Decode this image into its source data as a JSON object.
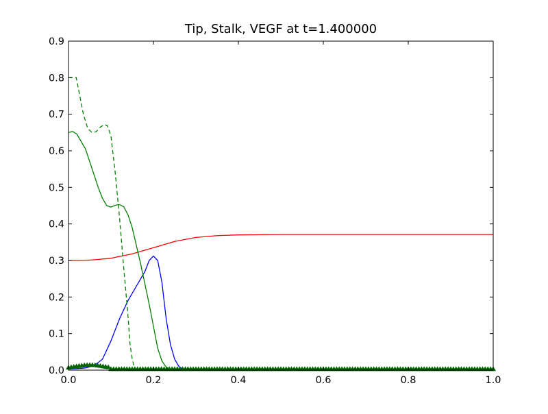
{
  "chart_data": {
    "type": "line",
    "title": "Tip, Stalk, VEGF at t=1.400000",
    "xlabel": "",
    "ylabel": "",
    "xlim": [
      0.0,
      1.0
    ],
    "ylim": [
      0.0,
      0.9
    ],
    "x_ticks": [
      "0.0",
      "0.2",
      "0.4",
      "0.6",
      "0.8",
      "1.0"
    ],
    "y_ticks": [
      "0.0",
      "0.1",
      "0.2",
      "0.3",
      "0.4",
      "0.5",
      "0.6",
      "0.7",
      "0.8",
      "0.9"
    ],
    "grid": false,
    "legend": "none",
    "series": [
      {
        "color": "#ff0000",
        "style": "solid",
        "points": [
          [
            0.0,
            0.3
          ],
          [
            0.05,
            0.301
          ],
          [
            0.1,
            0.306
          ],
          [
            0.15,
            0.318
          ],
          [
            0.2,
            0.335
          ],
          [
            0.25,
            0.352
          ],
          [
            0.3,
            0.363
          ],
          [
            0.35,
            0.368
          ],
          [
            0.4,
            0.37
          ],
          [
            0.5,
            0.371
          ],
          [
            0.6,
            0.371
          ],
          [
            0.7,
            0.371
          ],
          [
            0.8,
            0.371
          ],
          [
            0.9,
            0.371
          ],
          [
            1.0,
            0.371
          ]
        ]
      },
      {
        "color": "#0000ff",
        "style": "solid",
        "points": [
          [
            0.0,
            0.003
          ],
          [
            0.02,
            0.004
          ],
          [
            0.04,
            0.006
          ],
          [
            0.06,
            0.012
          ],
          [
            0.08,
            0.03
          ],
          [
            0.1,
            0.08
          ],
          [
            0.12,
            0.14
          ],
          [
            0.14,
            0.19
          ],
          [
            0.16,
            0.23
          ],
          [
            0.18,
            0.27
          ],
          [
            0.19,
            0.3
          ],
          [
            0.2,
            0.312
          ],
          [
            0.21,
            0.3
          ],
          [
            0.22,
            0.24
          ],
          [
            0.23,
            0.14
          ],
          [
            0.24,
            0.07
          ],
          [
            0.25,
            0.03
          ],
          [
            0.26,
            0.01
          ],
          [
            0.27,
            0.002
          ],
          [
            0.28,
            0.0
          ],
          [
            0.4,
            0.0
          ],
          [
            1.0,
            0.0
          ]
        ]
      },
      {
        "color": "#008000",
        "style": "solid",
        "points": [
          [
            0.0,
            0.65
          ],
          [
            0.01,
            0.653
          ],
          [
            0.02,
            0.645
          ],
          [
            0.04,
            0.605
          ],
          [
            0.06,
            0.535
          ],
          [
            0.07,
            0.5
          ],
          [
            0.08,
            0.47
          ],
          [
            0.09,
            0.45
          ],
          [
            0.1,
            0.446
          ],
          [
            0.11,
            0.451
          ],
          [
            0.12,
            0.453
          ],
          [
            0.13,
            0.447
          ],
          [
            0.14,
            0.425
          ],
          [
            0.15,
            0.39
          ],
          [
            0.16,
            0.34
          ],
          [
            0.17,
            0.29
          ],
          [
            0.18,
            0.235
          ],
          [
            0.19,
            0.18
          ],
          [
            0.2,
            0.12
          ],
          [
            0.21,
            0.06
          ],
          [
            0.22,
            0.025
          ],
          [
            0.23,
            0.008
          ],
          [
            0.24,
            0.002
          ],
          [
            0.25,
            0.0
          ],
          [
            0.4,
            0.0
          ],
          [
            1.0,
            0.0
          ]
        ]
      },
      {
        "color": "#008000",
        "style": "dashed",
        "points": [
          [
            0.0,
            0.8
          ],
          [
            0.018,
            0.801
          ],
          [
            0.025,
            0.76
          ],
          [
            0.035,
            0.7
          ],
          [
            0.045,
            0.662
          ],
          [
            0.055,
            0.65
          ],
          [
            0.065,
            0.652
          ],
          [
            0.075,
            0.665
          ],
          [
            0.085,
            0.672
          ],
          [
            0.092,
            0.668
          ],
          [
            0.1,
            0.64
          ],
          [
            0.11,
            0.54
          ],
          [
            0.12,
            0.42
          ],
          [
            0.13,
            0.28
          ],
          [
            0.14,
            0.15
          ],
          [
            0.145,
            0.07
          ],
          [
            0.15,
            0.03
          ],
          [
            0.155,
            0.008
          ],
          [
            0.16,
            0.0
          ],
          [
            0.4,
            0.0
          ],
          [
            1.0,
            0.0
          ]
        ]
      }
    ]
  }
}
